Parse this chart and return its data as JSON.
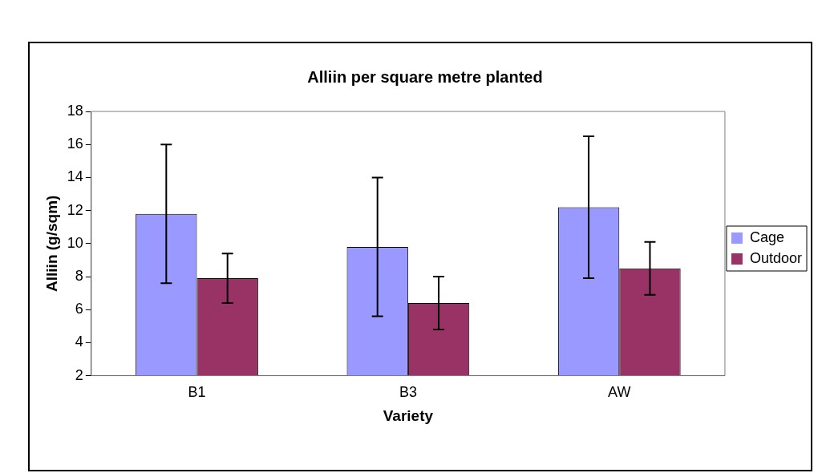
{
  "chart_data": {
    "type": "bar",
    "title": "Alliin per square metre planted",
    "xlabel": "Variety",
    "ylabel": "Alliin (g/sqm)",
    "categories": [
      "B1",
      "B3",
      "AW"
    ],
    "series": [
      {
        "name": "Cage",
        "color": "#9999ff",
        "values": [
          11.8,
          9.8,
          12.2
        ],
        "errors": [
          4.2,
          4.2,
          4.3
        ]
      },
      {
        "name": "Outdoor",
        "color": "#993366",
        "values": [
          7.9,
          6.4,
          8.5
        ],
        "errors": [
          1.5,
          1.6,
          1.6
        ]
      }
    ],
    "ylim": [
      2,
      18
    ],
    "yticks": [
      2,
      4,
      6,
      8,
      10,
      12,
      14,
      16,
      18
    ],
    "grid": false,
    "legend": "right"
  }
}
